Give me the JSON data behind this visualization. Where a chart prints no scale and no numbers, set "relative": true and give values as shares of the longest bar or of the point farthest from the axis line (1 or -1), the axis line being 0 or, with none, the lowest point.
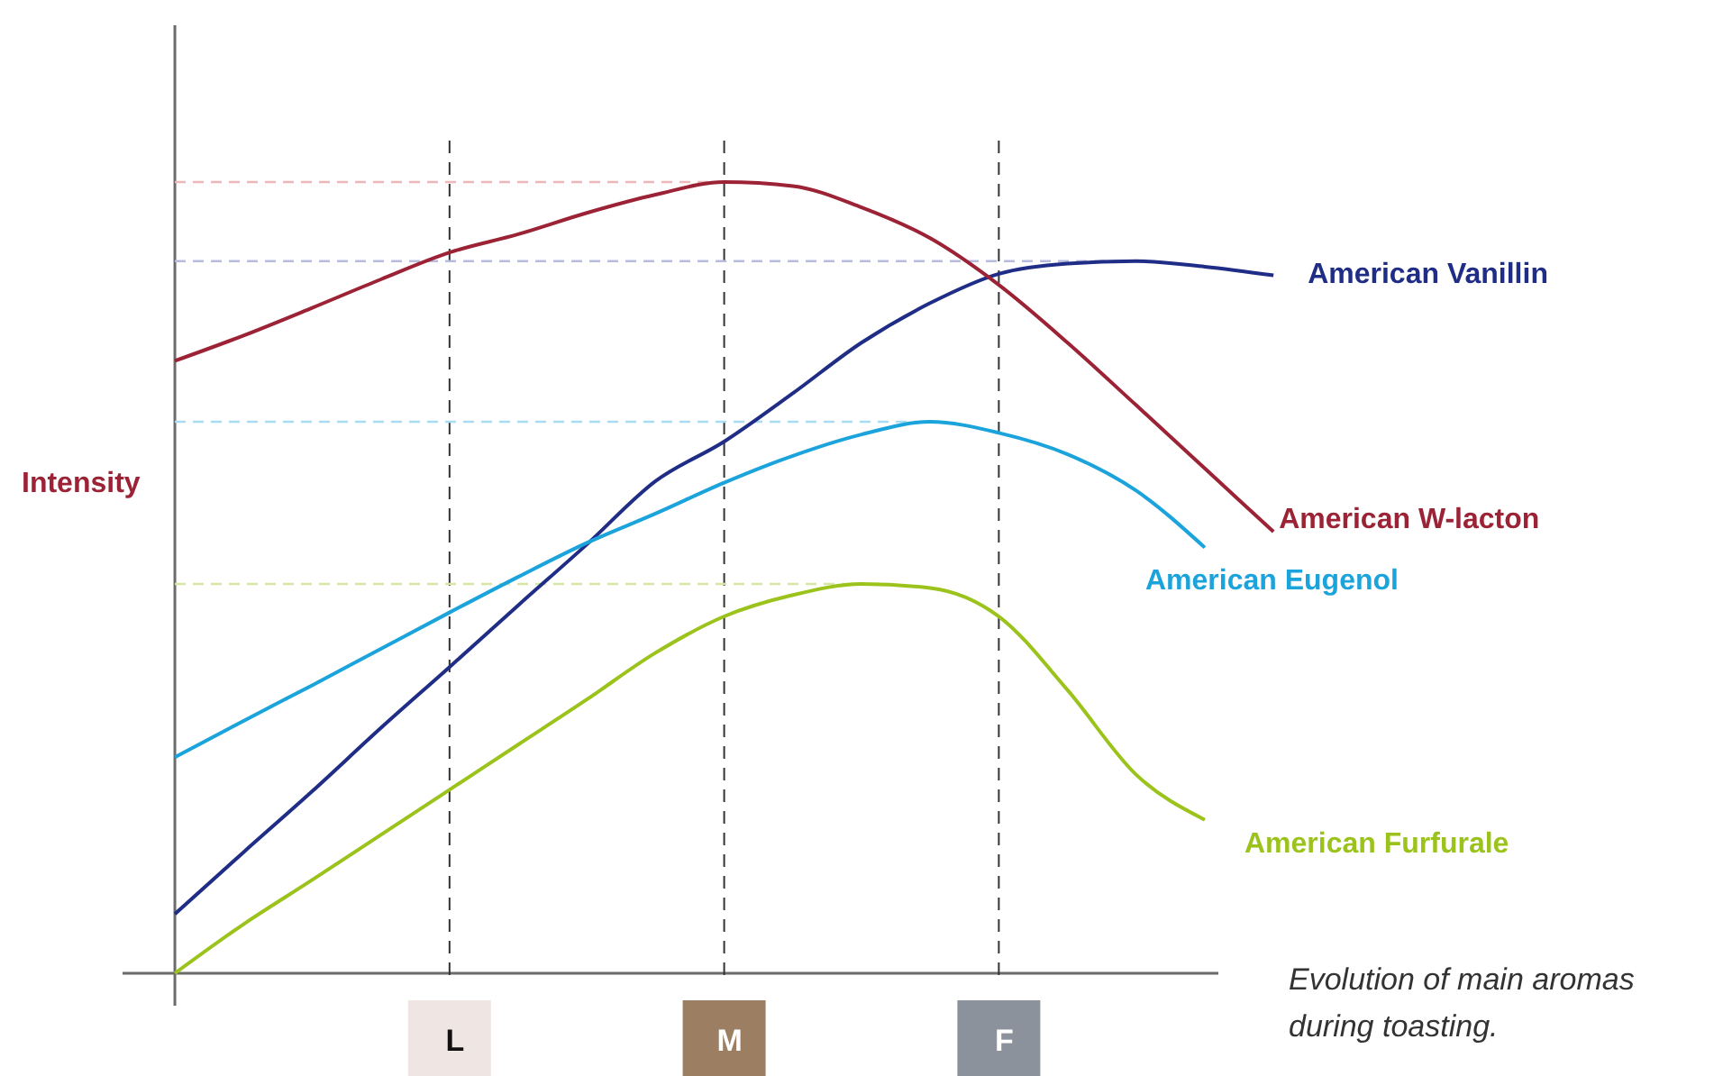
{
  "chart_data": {
    "type": "line",
    "relative": true,
    "grid": "x",
    "ylabel": "Intensity",
    "categories": [
      null,
      null,
      null,
      null,
      "L",
      null,
      null,
      null,
      "M",
      null,
      null,
      null,
      "F",
      null,
      null,
      null,
      null
    ],
    "series": [
      {
        "name": "American Vanillin",
        "color": "#1f2d86",
        "values": [
          0.075,
          0.153,
          0.23,
          0.31,
          0.387,
          0.465,
          0.542,
          0.622,
          0.672,
          0.733,
          0.797,
          0.847,
          0.884,
          0.897,
          0.9,
          0.893,
          0.882
        ]
      },
      {
        "name": "American W-lacton",
        "color": "#9b2335",
        "values": [
          0.774,
          0.806,
          0.841,
          0.877,
          0.911,
          0.934,
          0.961,
          0.984,
          1.0,
          0.995,
          0.968,
          0.929,
          0.87,
          0.797,
          0.718,
          0.638,
          0.558
        ]
      },
      {
        "name": "American Eugenol",
        "color": "#1ba3dc",
        "values": [
          0.273,
          0.319,
          0.364,
          0.41,
          0.456,
          0.501,
          0.544,
          0.581,
          0.62,
          0.654,
          0.681,
          0.697,
          0.683,
          0.656,
          0.61,
          0.538,
          null
        ]
      },
      {
        "name": "American Furfurale",
        "color": "#9bc31c",
        "values": [
          0.0,
          0.062,
          0.118,
          0.175,
          0.232,
          0.289,
          0.346,
          0.405,
          0.451,
          0.478,
          0.492,
          0.487,
          0.451,
          0.358,
          0.251,
          0.194,
          null
        ]
      }
    ],
    "ref_lines": [
      {
        "axis": "y",
        "value": 1.0,
        "color": "#ecb8bb",
        "line_style": "dashed"
      },
      {
        "axis": "y",
        "value": 0.9,
        "color": "#b8bbe0",
        "line_style": "dashed"
      },
      {
        "axis": "y",
        "value": 0.697,
        "color": "#a8dcf2",
        "line_style": "dashed"
      },
      {
        "axis": "y",
        "value": 0.492,
        "color": "#d6e6a4",
        "line_style": "dashed"
      }
    ],
    "annotations": [
      "Evolution of main aromas during toasting."
    ]
  }
}
